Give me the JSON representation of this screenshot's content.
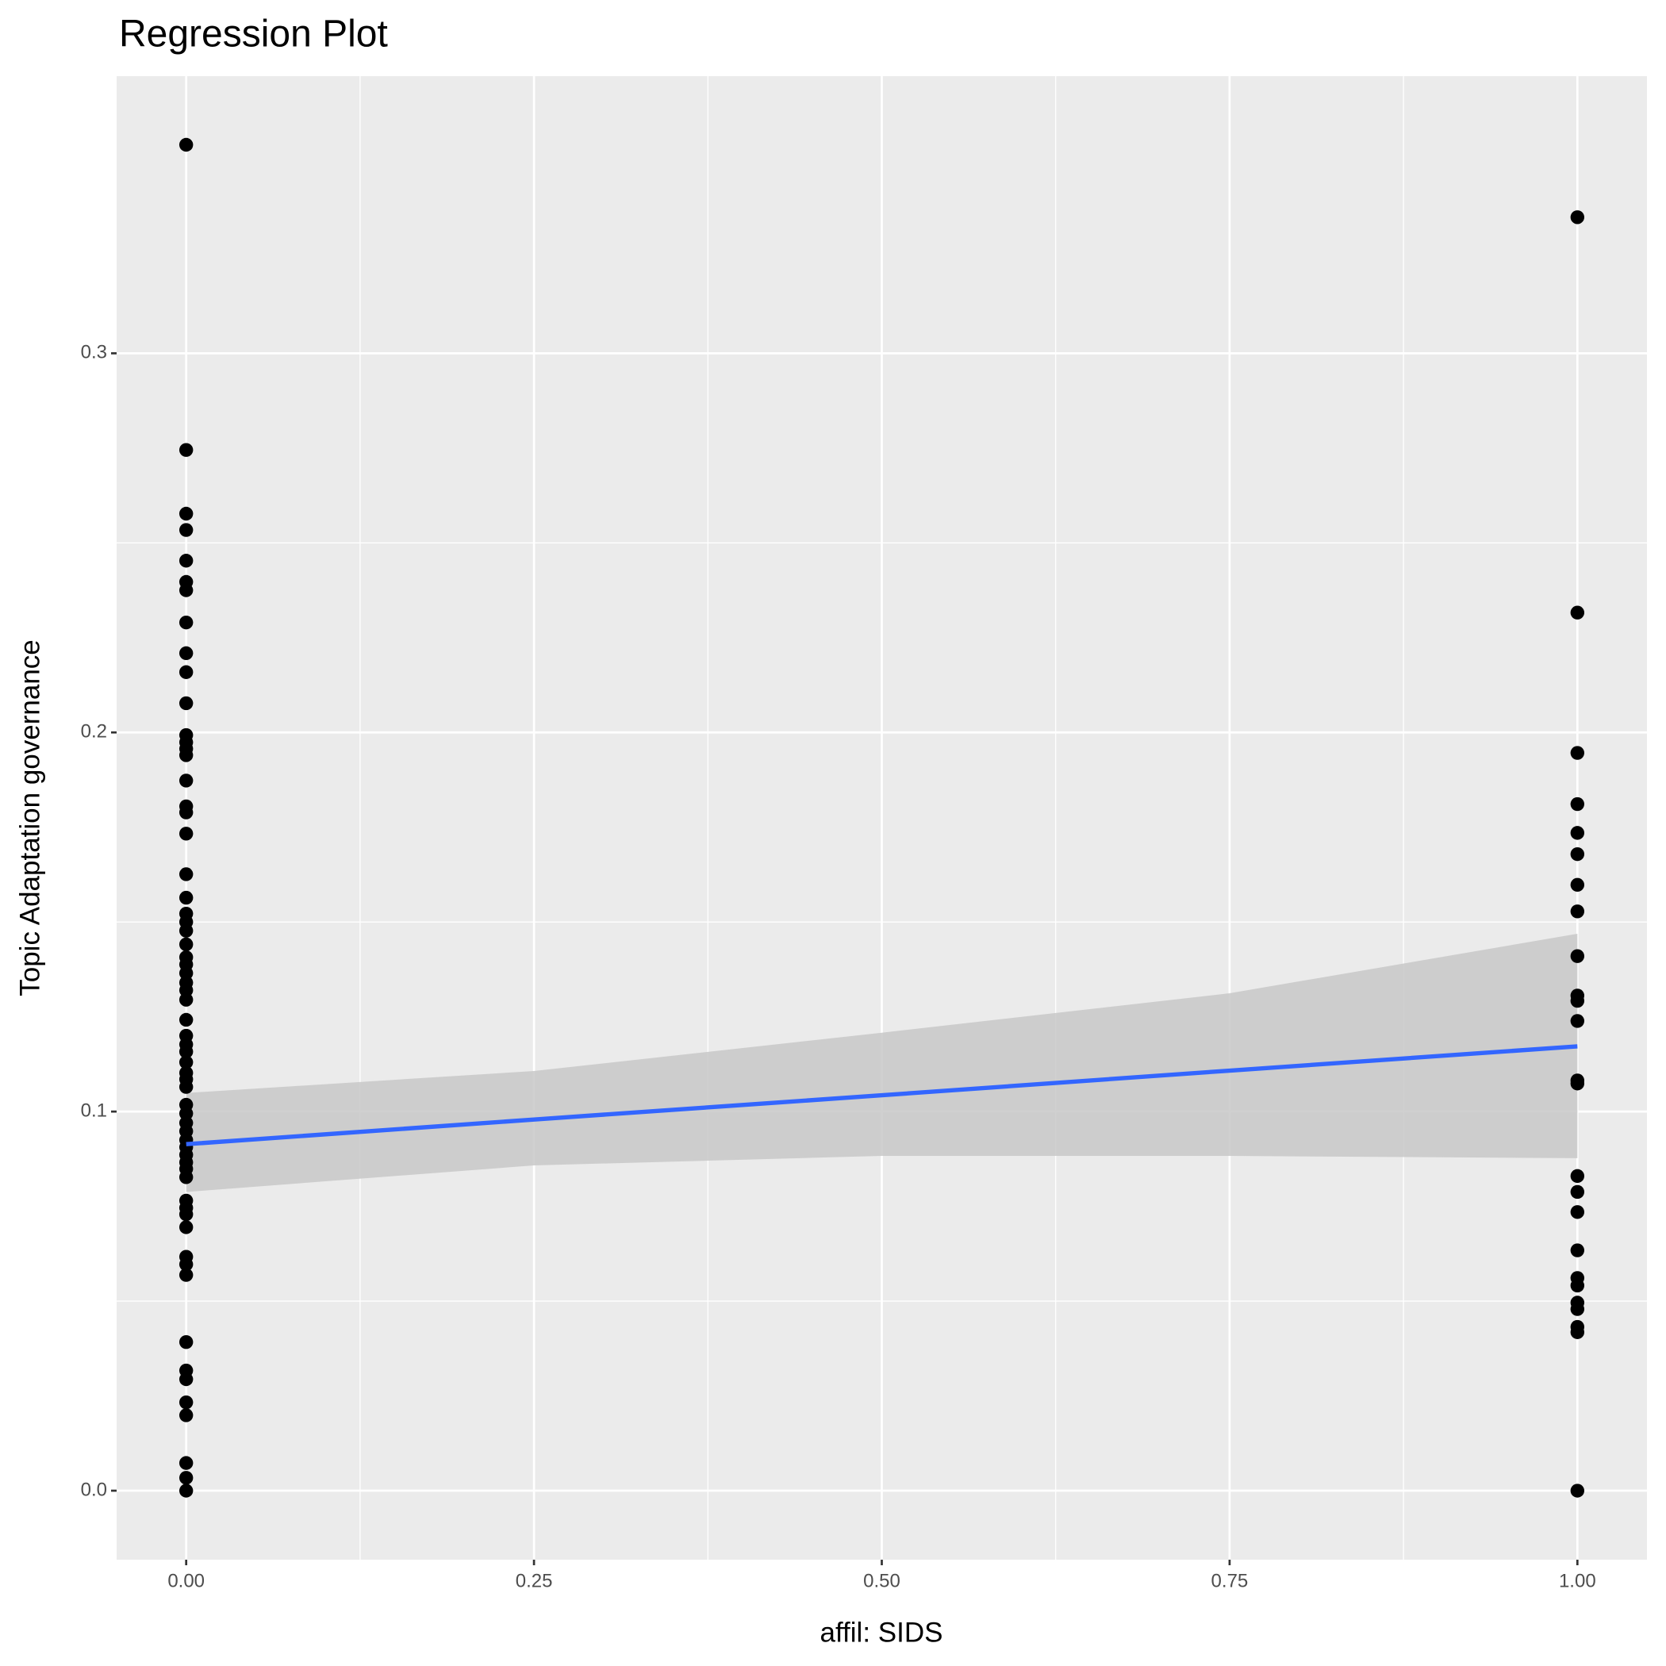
{
  "chart_data": {
    "type": "scatter",
    "title": "Regression Plot",
    "x_label": "affil: SIDS",
    "y_label": "Topic Adaptation governance",
    "xlim": [
      -0.05,
      1.05
    ],
    "ylim": [
      -0.0182,
      0.3731
    ],
    "xticks": [
      {
        "value": 0,
        "label": "0.00"
      },
      {
        "value": 0.25,
        "label": "0.25"
      },
      {
        "value": 0.5,
        "label": "0.50"
      },
      {
        "value": 0.75,
        "label": "0.75"
      },
      {
        "value": 1,
        "label": "1.00"
      }
    ],
    "yticks": [
      {
        "value": 0,
        "label": "0.0"
      },
      0.1,
      0.2,
      0.3
    ],
    "grid": true,
    "points": {
      "color": "#000000",
      "x": [
        0,
        0,
        0,
        0,
        0,
        0,
        0,
        0,
        0,
        0,
        0,
        0,
        0,
        0,
        0,
        0,
        0,
        0,
        0,
        0,
        0,
        0,
        0,
        0,
        0,
        0,
        0,
        0,
        0,
        0,
        0,
        0,
        0,
        0,
        0,
        0,
        0,
        0,
        0,
        0,
        0,
        0,
        0,
        0,
        0,
        0,
        0,
        0,
        0,
        0,
        0,
        0,
        0,
        0,
        0,
        0,
        0,
        0,
        0,
        0,
        0,
        0,
        0,
        0,
        1,
        1,
        1,
        1,
        1,
        1,
        1,
        1,
        1,
        1,
        1,
        1,
        1,
        1,
        1,
        1,
        1,
        1,
        1,
        1,
        1,
        1,
        1,
        1,
        1
      ],
      "y": [
        0.355,
        0.2745,
        0.2577,
        0.2534,
        0.2453,
        0.2397,
        0.2375,
        0.229,
        0.2209,
        0.2159,
        0.2077,
        0.1993,
        0.1974,
        0.1957,
        0.194,
        0.1873,
        0.1805,
        0.1789,
        0.1733,
        0.1626,
        0.1564,
        0.1522,
        0.15,
        0.1477,
        0.1441,
        0.1407,
        0.1388,
        0.1365,
        0.134,
        0.132,
        0.1295,
        0.1242,
        0.12,
        0.1177,
        0.1158,
        0.113,
        0.1102,
        0.1085,
        0.1065,
        0.1018,
        0.0995,
        0.097,
        0.0948,
        0.0925,
        0.0906,
        0.0886,
        0.0866,
        0.0849,
        0.0827,
        0.0765,
        0.0746,
        0.0729,
        0.0695,
        0.0617,
        0.0597,
        0.0569,
        0.0392,
        0.0317,
        0.0294,
        0.0233,
        0.0199,
        0.0073,
        0.0034,
        0,
        0.3359,
        0.2316,
        0.1946,
        0.1811,
        0.1735,
        0.1679,
        0.1598,
        0.1528,
        0.141,
        0.1306,
        0.1292,
        0.1239,
        0.1082,
        0.1074,
        0.083,
        0.0788,
        0.0735,
        0.0634,
        0.0561,
        0.0541,
        0.0496,
        0.0479,
        0.0432,
        0.0418,
        0
      ]
    },
    "fit": {
      "color": "#3366ff",
      "fill": "#c8c8c8",
      "x": [
        0,
        0.25,
        0.5,
        0.75,
        1
      ],
      "y": [
        0.0914,
        0.0979,
        0.1043,
        0.1108,
        0.1172
      ],
      "ymin": [
        0.0788,
        0.0858,
        0.0883,
        0.0883,
        0.0877
      ],
      "ymax": [
        0.1049,
        0.1107,
        0.1208,
        0.1312,
        0.1469
      ]
    }
  }
}
